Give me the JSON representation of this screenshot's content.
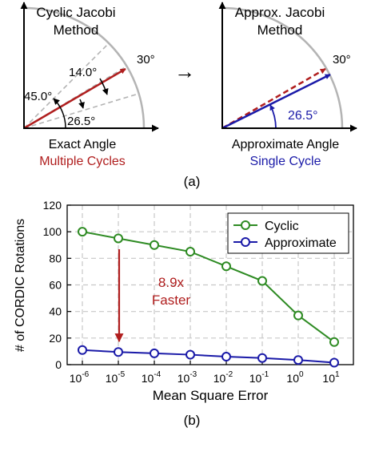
{
  "panel_a": {
    "left": {
      "title_line1": "Cyclic Jacobi",
      "title_line2": "Method",
      "angle_30": "30°",
      "angle_14": "14.0°",
      "angle_45": "45.0°",
      "angle_26": "26.5°",
      "caption_line1": "Exact Angle",
      "caption_line2": "Multiple Cycles"
    },
    "right": {
      "title_line1": "Approx. Jacobi",
      "title_line2": "Method",
      "angle_30": "30°",
      "angle_26": "26.5°",
      "caption_line1": "Approximate Angle",
      "caption_line2": "Single Cycle"
    },
    "arrow_glyph": "→",
    "label": "(a)",
    "colors": {
      "red": "#b01e1e",
      "blue": "#1a1aa8",
      "gray": "#b4b4b4"
    }
  },
  "panel_b": {
    "label": "(b)",
    "annotation_line1": "8.9x",
    "annotation_line2": "Faster",
    "colors": {
      "cyclic": "#2e8b23",
      "approximate": "#1a1aa8",
      "annotation": "#b01e1e"
    }
  },
  "chart_data": {
    "type": "line",
    "xlabel": "Mean Square Error",
    "ylabel": "# of CORDIC Rotations",
    "x_tick_labels": [
      {
        "base": "10",
        "exp": "-6"
      },
      {
        "base": "10",
        "exp": "-5"
      },
      {
        "base": "10",
        "exp": "-4"
      },
      {
        "base": "10",
        "exp": "-3"
      },
      {
        "base": "10",
        "exp": "-2"
      },
      {
        "base": "10",
        "exp": "-1"
      },
      {
        "base": "10",
        "exp": "0"
      },
      {
        "base": "10",
        "exp": "1"
      }
    ],
    "x": [
      -6,
      -5,
      -4,
      -3,
      -2,
      -1,
      0,
      1
    ],
    "x_scale": "log10",
    "ylim": [
      0,
      120
    ],
    "y_ticks": [
      0,
      20,
      40,
      60,
      80,
      100,
      120
    ],
    "grid": true,
    "legend_position": "top-right",
    "series": [
      {
        "name": "Cyclic",
        "values": [
          100,
          95,
          90,
          85,
          74,
          63,
          37,
          17
        ]
      },
      {
        "name": "Approximate",
        "values": [
          11,
          9.5,
          8.5,
          7.5,
          6,
          5,
          3.5,
          1.5
        ]
      }
    ]
  }
}
